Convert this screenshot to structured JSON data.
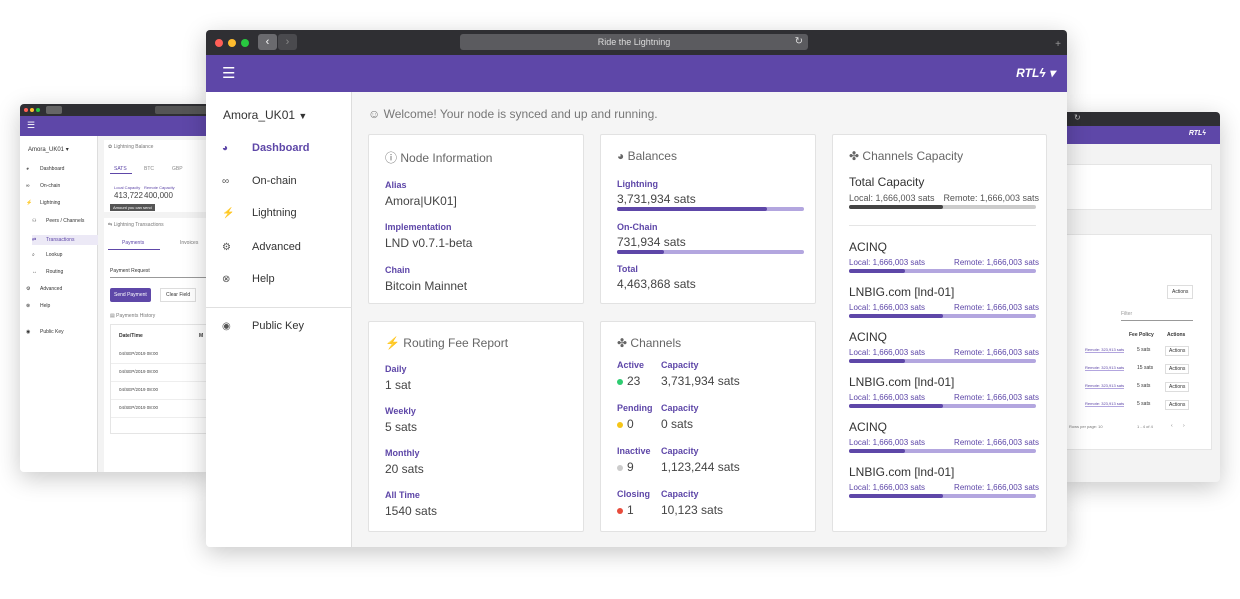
{
  "main": {
    "title": "Ride the Lightning",
    "brand": "RTLϟ",
    "node_selector": "Amora_UK01",
    "welcome": "Welcome! Your node is synced and up and running.",
    "nav": [
      {
        "label": "Dashboard",
        "icon": "dashboard-icon"
      },
      {
        "label": "On-chain",
        "icon": "link-icon"
      },
      {
        "label": "Lightning",
        "icon": "lightning-icon"
      },
      {
        "label": "Advanced",
        "icon": "gear-icon"
      },
      {
        "label": "Help",
        "icon": "help-icon"
      },
      {
        "label": "Public Key",
        "icon": "eye-icon"
      }
    ],
    "node_info": {
      "title": "Node Information",
      "alias_label": "Alias",
      "alias": "Amora|UK01]",
      "impl_label": "Implementation",
      "impl": "LND v0.7.1-beta",
      "chain_label": "Chain",
      "chain": "Bitcoin Mainnet"
    },
    "balances": {
      "title": "Balances",
      "lightning_label": "Lightning",
      "lightning": "3,731,934 sats",
      "lightning_fraction": 0.8,
      "onchain_label": "On-Chain",
      "onchain": "731,934 sats",
      "onchain_fraction": 0.25,
      "total_label": "Total",
      "total": "4,463,868 sats"
    },
    "capacity": {
      "title": "Channels Capacity",
      "total_label": "Total Capacity",
      "total_local": "Local: 1,666,003 sats",
      "total_remote": "Remote: 1,666,003 sats",
      "peers": [
        {
          "name": "ACINQ",
          "local": "Local: 1,666,003 sats",
          "remote": "Remote: 1,666,003 sats",
          "fraction": 0.3
        },
        {
          "name": "LNBIG.com [lnd-01]",
          "local": "Local: 1,666,003 sats",
          "remote": "Remote: 1,666,003 sats",
          "fraction": 0.5
        },
        {
          "name": "ACINQ",
          "local": "Local: 1,666,003 sats",
          "remote": "Remote: 1,666,003 sats",
          "fraction": 0.3
        },
        {
          "name": "LNBIG.com [lnd-01]",
          "local": "Local: 1,666,003 sats",
          "remote": "Remote: 1,666,003 sats",
          "fraction": 0.5
        },
        {
          "name": "ACINQ",
          "local": "Local: 1,666,003 sats",
          "remote": "Remote: 1,666,003 sats",
          "fraction": 0.3
        },
        {
          "name": "LNBIG.com [lnd-01]",
          "local": "Local: 1,666,003 sats",
          "remote": "Remote: 1,666,003 sats",
          "fraction": 0.5
        }
      ]
    },
    "fees": {
      "title": "Routing Fee Report",
      "rows": [
        {
          "label": "Daily",
          "value": "1 sat"
        },
        {
          "label": "Weekly",
          "value": "5 sats"
        },
        {
          "label": "Monthly",
          "value": "20 sats"
        },
        {
          "label": "All Time",
          "value": "1540 sats"
        }
      ]
    },
    "channels": {
      "title": "Channels",
      "cap_label": "Capacity",
      "rows": [
        {
          "label": "Active",
          "count": "23",
          "capacity": "3,731,934 sats",
          "color": "#2ecc71"
        },
        {
          "label": "Pending",
          "count": "0",
          "capacity": "0 sats",
          "color": "#f5c518"
        },
        {
          "label": "Inactive",
          "count": "9",
          "capacity": "1,123,244 sats",
          "color": "#cccccc"
        },
        {
          "label": "Closing",
          "count": "1",
          "capacity": "10,123 sats",
          "color": "#e74c3c"
        }
      ]
    }
  },
  "left": {
    "node_selector": "Amora_UK01",
    "nav": [
      "Dashboard",
      "On-chain",
      "Lightning",
      "Peers / Channels",
      "Transactions",
      "Lookup",
      "Routing",
      "Advanced",
      "Help",
      "Public Key"
    ],
    "balance_title": "Lightning Balance",
    "tabs": [
      "SATS",
      "BTC",
      "GBP"
    ],
    "local_label": "Local Capacity",
    "local_value": "413,722",
    "remote_label": "Remote Capacity",
    "remote_value": "400,000",
    "tooltip": "Amount you can send",
    "tx_title": "Lightning Transactions",
    "tx_tabs": [
      "Payments",
      "Invoices"
    ],
    "payment_request": "Payment Request",
    "send_button": "Send Payment",
    "clear_button": "Clear Field",
    "history_title": "Payments History",
    "date_header": "Date/Time",
    "col2_header": "M",
    "dates": [
      "04/SEP/2019 08:00",
      "04/SEP/2019 08:00",
      "04/SEP/2019 08:00",
      "04/SEP/2019 08:00"
    ]
  },
  "right": {
    "brand": "RTLϟ",
    "actions_label": "Actions",
    "filter_placeholder": "Filter",
    "fee_policy_header": "Fee Policy",
    "actions_header": "Actions",
    "rows": [
      {
        "remote": "Remote: 323,913 sats",
        "fee": "5 sats",
        "action": "Actions"
      },
      {
        "remote": "Remote: 323,913 sats",
        "fee": "15 sats",
        "action": "Actions"
      },
      {
        "remote": "Remote: 323,913 sats",
        "fee": "5 sats",
        "action": "Actions"
      },
      {
        "remote": "Remote: 323,913 sats",
        "fee": "5 sats",
        "action": "Actions"
      }
    ],
    "paginator": "Rows per page: 10",
    "range": "1 - 4 of 4"
  }
}
